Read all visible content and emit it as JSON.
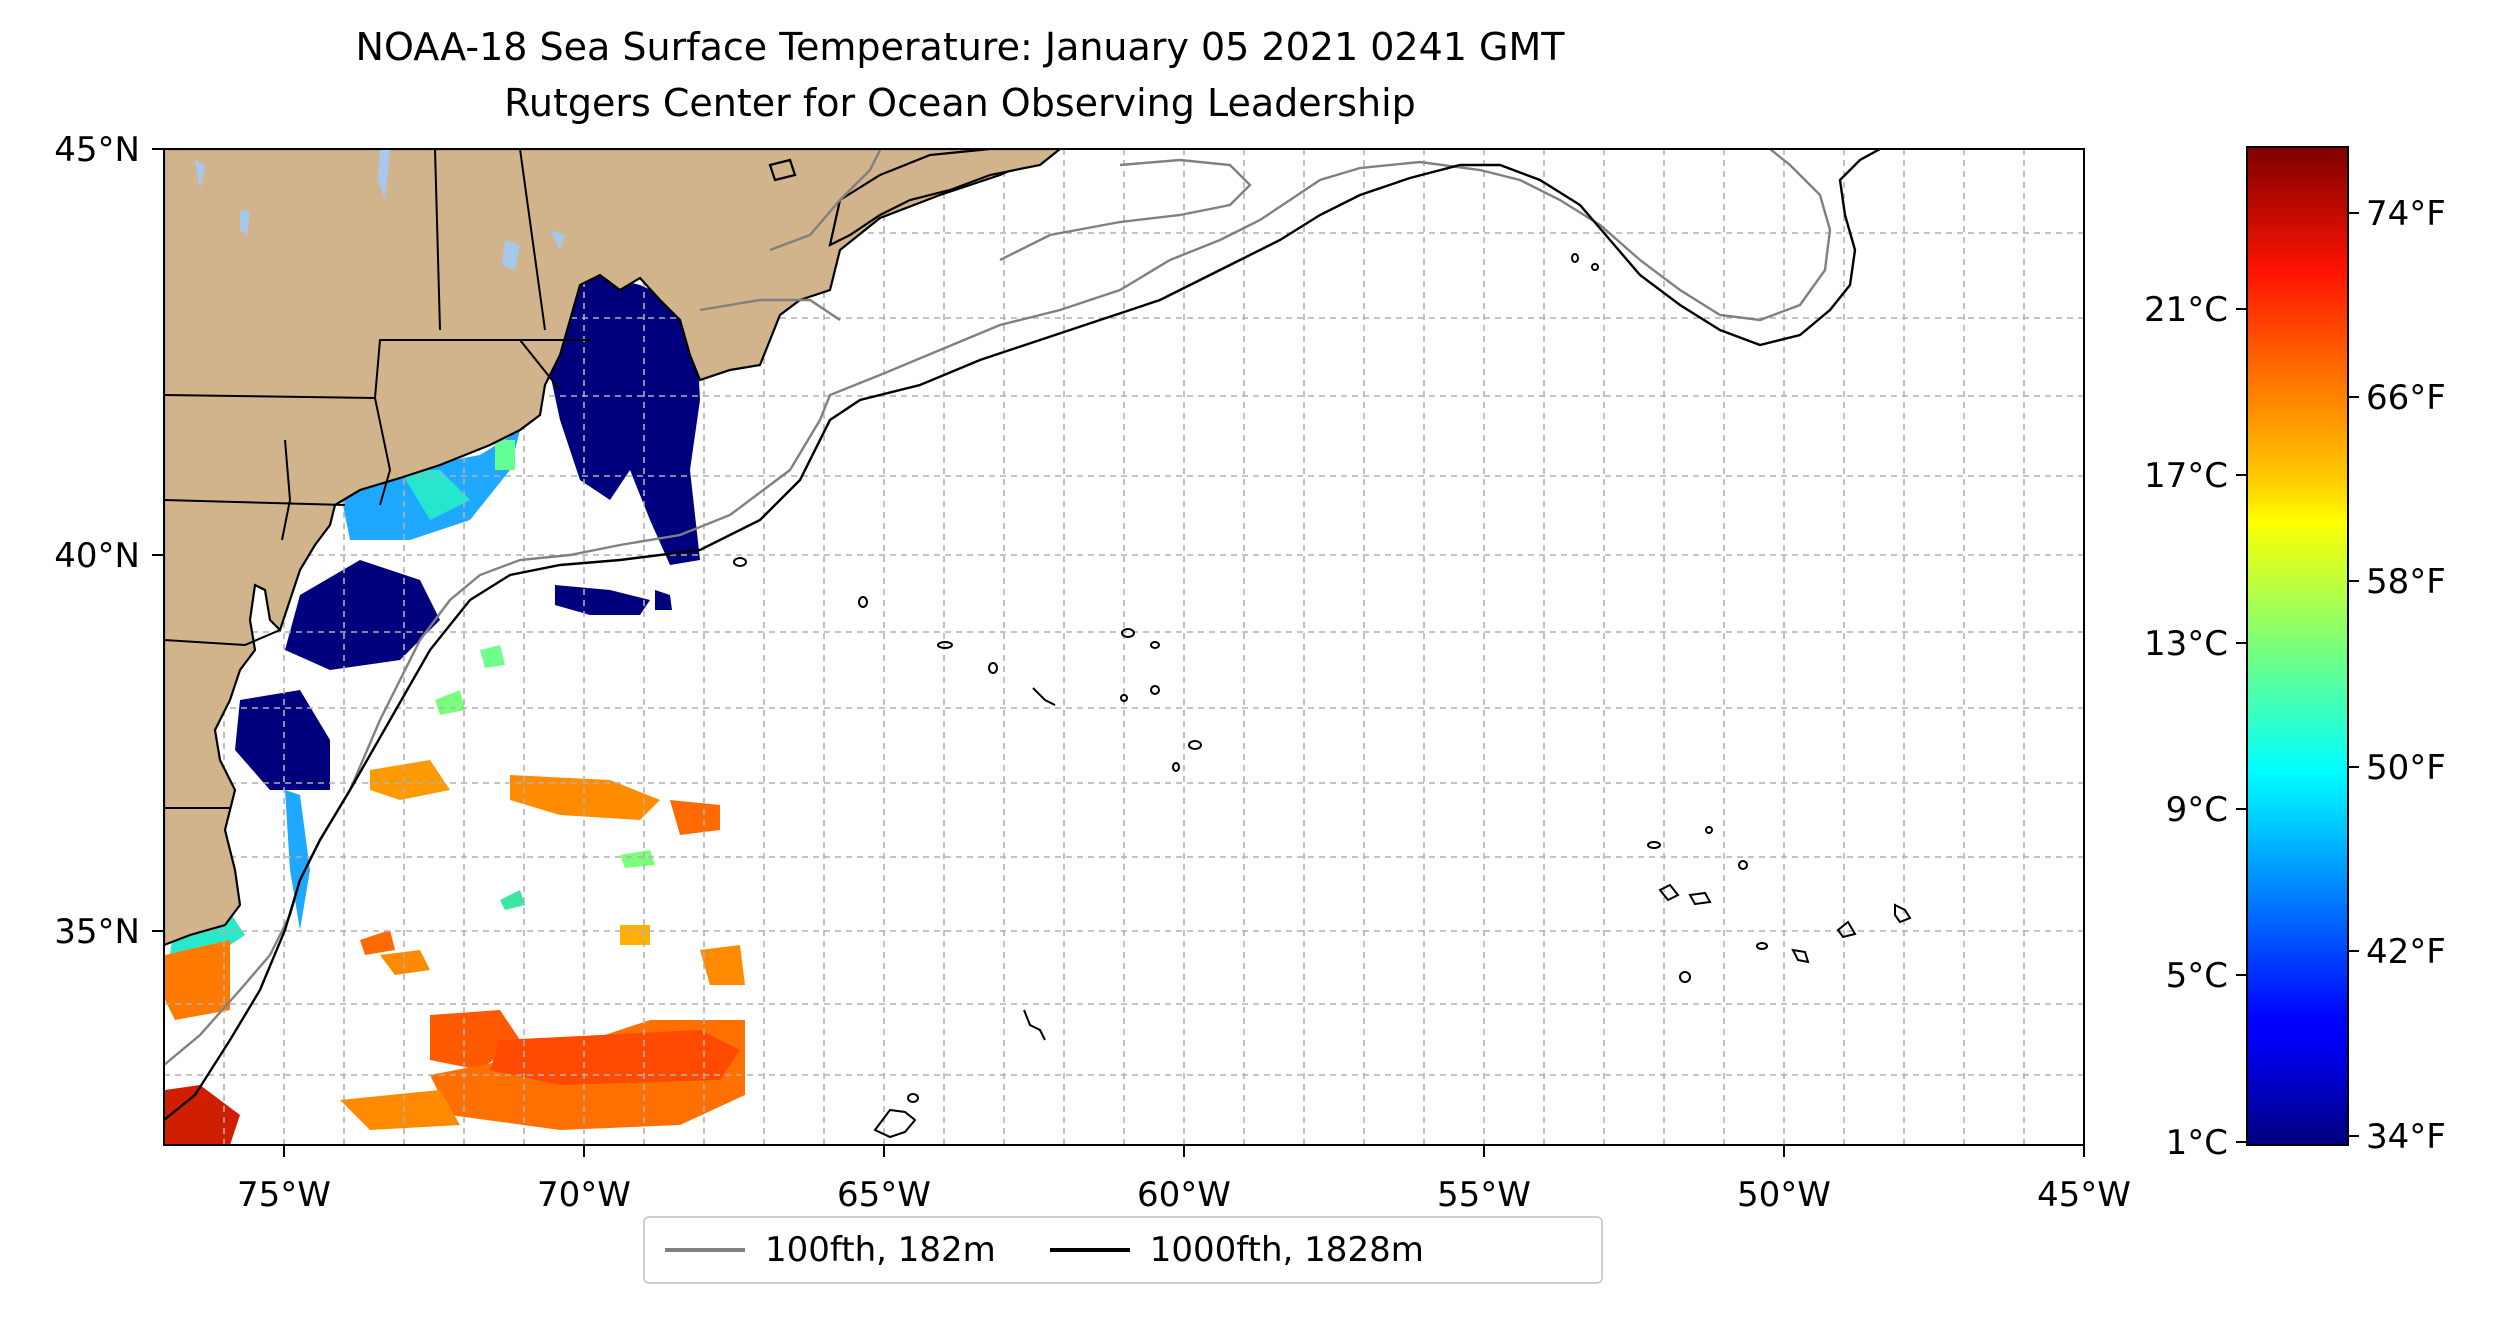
{
  "title": "NOAA-18 Sea Surface Temperature: January 05 2021 0241 GMT",
  "subtitle": "Rutgers Center for Ocean Observing Leadership",
  "map": {
    "lon_range": [
      -77,
      -45
    ],
    "lat_range": [
      32.4,
      45
    ],
    "lat_ticks": [
      {
        "value": 35,
        "label": "35°N"
      },
      {
        "value": 40,
        "label": "40°N"
      },
      {
        "value": 45,
        "label": "45°N"
      }
    ],
    "lon_ticks": [
      {
        "value": -75,
        "label": "75°W"
      },
      {
        "value": -70,
        "label": "70°W"
      },
      {
        "value": -65,
        "label": "65°W"
      },
      {
        "value": -60,
        "label": "60°W"
      },
      {
        "value": -55,
        "label": "55°W"
      },
      {
        "value": -50,
        "label": "50°W"
      },
      {
        "value": -45,
        "label": "45°W"
      }
    ],
    "gridlines": "dashed",
    "land_color": "#d2b48c",
    "lake_color": "#a6c8ec",
    "contour_100fth_color": "#808080",
    "contour_1000fth_color": "#000000"
  },
  "legend": {
    "placement": "bottom-center",
    "items": [
      {
        "label": "100fth, 182m",
        "color": "#808080"
      },
      {
        "label": "1000fth, 1828m",
        "color": "#000000"
      }
    ]
  },
  "colorbar": {
    "colormap": "jet",
    "celsius_labels": [
      "1°C",
      "5°C",
      "9°C",
      "13°C",
      "17°C",
      "21°C"
    ],
    "fahrenheit_labels": [
      "34°F",
      "42°F",
      "50°F",
      "58°F",
      "66°F",
      "74°F"
    ]
  }
}
